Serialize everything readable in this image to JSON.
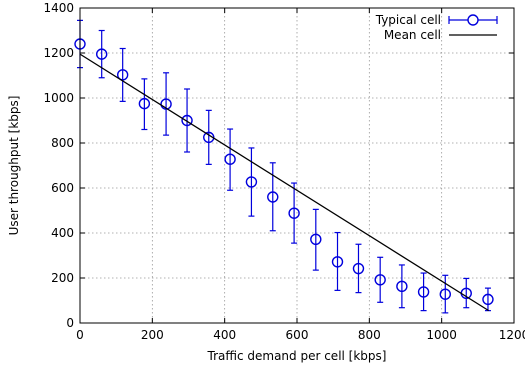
{
  "chart_data": {
    "type": "scatter",
    "xlabel": "Traffic demand per cell [kbps]",
    "ylabel": "User throughput [kbps]",
    "xlim": [
      0,
      1200
    ],
    "ylim": [
      0,
      1400
    ],
    "xticks": [
      0,
      200,
      400,
      600,
      800,
      1000,
      1200
    ],
    "yticks": [
      0,
      200,
      400,
      600,
      800,
      1000,
      1200,
      1400
    ],
    "x_tick_labels": [
      "0",
      "200",
      "400",
      "600",
      "800",
      "1000",
      "1200"
    ],
    "y_tick_labels": [
      "0",
      "200",
      "400",
      "600",
      "800",
      "1000",
      "1200",
      "1400"
    ],
    "grid": true,
    "legend_position": "top-right",
    "series": [
      {
        "name": "Typical cell",
        "marker": "circle",
        "errorbars": true,
        "color": "#0000dd",
        "points": [
          {
            "x": 0,
            "y": 1240,
            "ylow": 1135,
            "yhigh": 1345
          },
          {
            "x": 60,
            "y": 1195,
            "ylow": 1090,
            "yhigh": 1300
          },
          {
            "x": 118,
            "y": 1103,
            "ylow": 985,
            "yhigh": 1220
          },
          {
            "x": 178,
            "y": 975,
            "ylow": 860,
            "yhigh": 1085
          },
          {
            "x": 238,
            "y": 973,
            "ylow": 835,
            "yhigh": 1112
          },
          {
            "x": 296,
            "y": 900,
            "ylow": 760,
            "yhigh": 1040
          },
          {
            "x": 356,
            "y": 825,
            "ylow": 705,
            "yhigh": 945
          },
          {
            "x": 415,
            "y": 728,
            "ylow": 590,
            "yhigh": 862
          },
          {
            "x": 474,
            "y": 627,
            "ylow": 475,
            "yhigh": 778
          },
          {
            "x": 533,
            "y": 560,
            "ylow": 410,
            "yhigh": 712
          },
          {
            "x": 592,
            "y": 488,
            "ylow": 355,
            "yhigh": 622
          },
          {
            "x": 652,
            "y": 372,
            "ylow": 235,
            "yhigh": 505
          },
          {
            "x": 712,
            "y": 272,
            "ylow": 145,
            "yhigh": 402
          },
          {
            "x": 770,
            "y": 242,
            "ylow": 135,
            "yhigh": 350
          },
          {
            "x": 830,
            "y": 192,
            "ylow": 92,
            "yhigh": 292
          },
          {
            "x": 890,
            "y": 163,
            "ylow": 68,
            "yhigh": 258
          },
          {
            "x": 950,
            "y": 138,
            "ylow": 55,
            "yhigh": 222
          },
          {
            "x": 1010,
            "y": 128,
            "ylow": 45,
            "yhigh": 212
          },
          {
            "x": 1068,
            "y": 132,
            "ylow": 68,
            "yhigh": 198
          },
          {
            "x": 1128,
            "y": 105,
            "ylow": 55,
            "yhigh": 155
          }
        ]
      },
      {
        "name": "Mean cell",
        "marker": "none",
        "line": true,
        "color": "#000000",
        "x": [
          0,
          1130
        ],
        "y": [
          1195,
          55
        ]
      }
    ]
  }
}
